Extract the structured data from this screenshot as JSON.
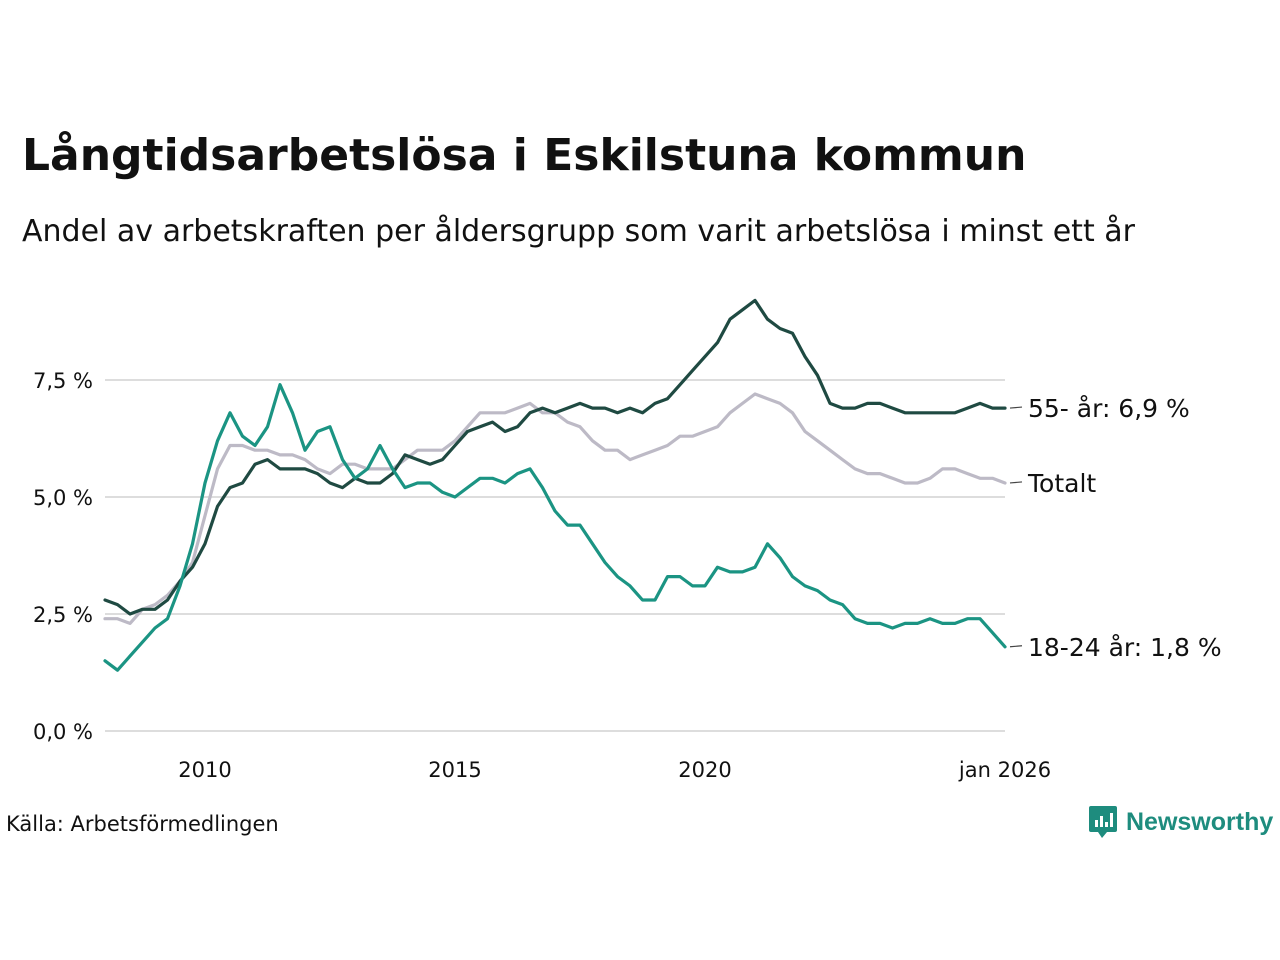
{
  "title": "Långtidsarbetslösa i Eskilstuna kommun",
  "subtitle": "Andel av arbetskraften per åldersgrupp som varit arbetslösa i minst ett år",
  "source": "Källa: Arbetsförmedlingen",
  "brand": {
    "name": "Newsworthy",
    "logo_icon": "newsworthy-logo-icon",
    "color": "#1e8c7e"
  },
  "chart_data": {
    "type": "line",
    "title": "Långtidsarbetslösa i Eskilstuna kommun",
    "subtitle": "Andel av arbetskraften per åldersgrupp som varit arbetslösa i minst ett år",
    "xlabel": "",
    "ylabel": "",
    "xlim": [
      2008.0,
      2026.0
    ],
    "ylim": [
      0,
      9.5
    ],
    "grid": true,
    "y_ticks": [
      {
        "value": 0.0,
        "label": "0,0 %"
      },
      {
        "value": 2.5,
        "label": "2,5 %"
      },
      {
        "value": 5.0,
        "label": "5,0 %"
      },
      {
        "value": 7.5,
        "label": "7,5 %"
      }
    ],
    "x_ticks": [
      {
        "value": 2010,
        "label": "2010"
      },
      {
        "value": 2015,
        "label": "2015"
      },
      {
        "value": 2020,
        "label": "2020"
      },
      {
        "value": 2026,
        "label": "jan 2026"
      }
    ],
    "series": [
      {
        "name": "Totalt",
        "label": "Totalt",
        "color": "#bdbac6",
        "x": [
          2008.0,
          2008.25,
          2008.5,
          2008.75,
          2009.0,
          2009.25,
          2009.5,
          2009.75,
          2010.0,
          2010.25,
          2010.5,
          2010.75,
          2011.0,
          2011.25,
          2011.5,
          2011.75,
          2012.0,
          2012.25,
          2012.5,
          2012.75,
          2013.0,
          2013.25,
          2013.5,
          2013.75,
          2014.0,
          2014.25,
          2014.5,
          2014.75,
          2015.0,
          2015.25,
          2015.5,
          2015.75,
          2016.0,
          2016.25,
          2016.5,
          2016.75,
          2017.0,
          2017.25,
          2017.5,
          2017.75,
          2018.0,
          2018.25,
          2018.5,
          2018.75,
          2019.0,
          2019.25,
          2019.5,
          2019.75,
          2020.0,
          2020.25,
          2020.5,
          2020.75,
          2021.0,
          2021.25,
          2021.5,
          2021.75,
          2022.0,
          2022.25,
          2022.5,
          2022.75,
          2023.0,
          2023.25,
          2023.5,
          2023.75,
          2024.0,
          2024.25,
          2024.5,
          2024.75,
          2025.0,
          2025.25,
          2025.5,
          2025.75,
          2026.0
        ],
        "values": [
          2.4,
          2.4,
          2.3,
          2.6,
          2.7,
          2.9,
          3.2,
          3.6,
          4.6,
          5.6,
          6.1,
          6.1,
          6.0,
          6.0,
          5.9,
          5.9,
          5.8,
          5.6,
          5.5,
          5.7,
          5.7,
          5.6,
          5.6,
          5.6,
          5.8,
          6.0,
          6.0,
          6.0,
          6.2,
          6.5,
          6.8,
          6.8,
          6.8,
          6.9,
          7.0,
          6.8,
          6.8,
          6.6,
          6.5,
          6.2,
          6.0,
          6.0,
          5.8,
          5.9,
          6.0,
          6.1,
          6.3,
          6.3,
          6.4,
          6.5,
          6.8,
          7.0,
          7.2,
          7.1,
          7.0,
          6.8,
          6.4,
          6.2,
          6.0,
          5.8,
          5.6,
          5.5,
          5.5,
          5.4,
          5.3,
          5.3,
          5.4,
          5.6,
          5.6,
          5.5,
          5.4,
          5.4,
          5.3
        ]
      },
      {
        "name": "55- år",
        "label": "55- år: 6,9 %",
        "color": "#1f4a42",
        "x": [
          2008.0,
          2008.25,
          2008.5,
          2008.75,
          2009.0,
          2009.25,
          2009.5,
          2009.75,
          2010.0,
          2010.25,
          2010.5,
          2010.75,
          2011.0,
          2011.25,
          2011.5,
          2011.75,
          2012.0,
          2012.25,
          2012.5,
          2012.75,
          2013.0,
          2013.25,
          2013.5,
          2013.75,
          2014.0,
          2014.25,
          2014.5,
          2014.75,
          2015.0,
          2015.25,
          2015.5,
          2015.75,
          2016.0,
          2016.25,
          2016.5,
          2016.75,
          2017.0,
          2017.25,
          2017.5,
          2017.75,
          2018.0,
          2018.25,
          2018.5,
          2018.75,
          2019.0,
          2019.25,
          2019.5,
          2019.75,
          2020.0,
          2020.25,
          2020.5,
          2020.75,
          2021.0,
          2021.25,
          2021.5,
          2021.75,
          2022.0,
          2022.25,
          2022.5,
          2022.75,
          2023.0,
          2023.25,
          2023.5,
          2023.75,
          2024.0,
          2024.25,
          2024.5,
          2024.75,
          2025.0,
          2025.25,
          2025.5,
          2025.75,
          2026.0
        ],
        "values": [
          2.8,
          2.7,
          2.5,
          2.6,
          2.6,
          2.8,
          3.2,
          3.5,
          4.0,
          4.8,
          5.2,
          5.3,
          5.7,
          5.8,
          5.6,
          5.6,
          5.6,
          5.5,
          5.3,
          5.2,
          5.4,
          5.3,
          5.3,
          5.5,
          5.9,
          5.8,
          5.7,
          5.8,
          6.1,
          6.4,
          6.5,
          6.6,
          6.4,
          6.5,
          6.8,
          6.9,
          6.8,
          6.9,
          7.0,
          6.9,
          6.9,
          6.8,
          6.9,
          6.8,
          7.0,
          7.1,
          7.4,
          7.7,
          8.0,
          8.3,
          8.8,
          9.0,
          9.2,
          8.8,
          8.6,
          8.5,
          8.0,
          7.6,
          7.0,
          6.9,
          6.9,
          7.0,
          7.0,
          6.9,
          6.8,
          6.8,
          6.8,
          6.8,
          6.8,
          6.9,
          7.0,
          6.9,
          6.9
        ]
      },
      {
        "name": "18-24 år",
        "label": "18-24 år: 1,8 %",
        "color": "#1b9483",
        "x": [
          2008.0,
          2008.25,
          2008.5,
          2008.75,
          2009.0,
          2009.25,
          2009.5,
          2009.75,
          2010.0,
          2010.25,
          2010.5,
          2010.75,
          2011.0,
          2011.25,
          2011.5,
          2011.75,
          2012.0,
          2012.25,
          2012.5,
          2012.75,
          2013.0,
          2013.25,
          2013.5,
          2013.75,
          2014.0,
          2014.25,
          2014.5,
          2014.75,
          2015.0,
          2015.25,
          2015.5,
          2015.75,
          2016.0,
          2016.25,
          2016.5,
          2016.75,
          2017.0,
          2017.25,
          2017.5,
          2017.75,
          2018.0,
          2018.25,
          2018.5,
          2018.75,
          2019.0,
          2019.25,
          2019.5,
          2019.75,
          2020.0,
          2020.25,
          2020.5,
          2020.75,
          2021.0,
          2021.25,
          2021.5,
          2021.75,
          2022.0,
          2022.25,
          2022.5,
          2022.75,
          2023.0,
          2023.25,
          2023.5,
          2023.75,
          2024.0,
          2024.25,
          2024.5,
          2024.75,
          2025.0,
          2025.25,
          2025.5,
          2025.75,
          2026.0
        ],
        "values": [
          1.5,
          1.3,
          1.6,
          1.9,
          2.2,
          2.4,
          3.1,
          4.0,
          5.3,
          6.2,
          6.8,
          6.3,
          6.1,
          6.5,
          7.4,
          6.8,
          6.0,
          6.4,
          6.5,
          5.8,
          5.4,
          5.6,
          6.1,
          5.6,
          5.2,
          5.3,
          5.3,
          5.1,
          5.0,
          5.2,
          5.4,
          5.4,
          5.3,
          5.5,
          5.6,
          5.2,
          4.7,
          4.4,
          4.4,
          4.0,
          3.6,
          3.3,
          3.1,
          2.8,
          2.8,
          3.3,
          3.3,
          3.1,
          3.1,
          3.5,
          3.4,
          3.4,
          3.5,
          4.0,
          3.7,
          3.3,
          3.1,
          3.0,
          2.8,
          2.7,
          2.4,
          2.3,
          2.3,
          2.2,
          2.3,
          2.3,
          2.4,
          2.3,
          2.3,
          2.4,
          2.4,
          2.1,
          1.8
        ]
      }
    ]
  }
}
